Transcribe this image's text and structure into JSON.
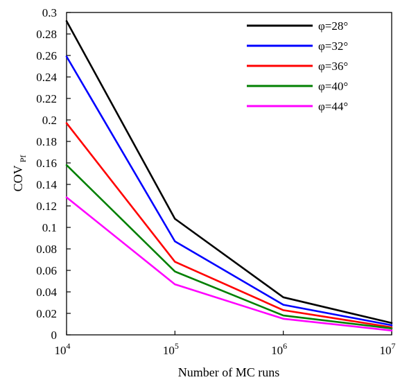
{
  "chart_data": {
    "type": "line",
    "xlabel": "Number of MC runs",
    "ylabel": {
      "main": "COV",
      "subscript": "Pf"
    },
    "x_scale": "log",
    "x": [
      10000,
      100000,
      1000000,
      10000000
    ],
    "x_ticks": [
      {
        "base": "10",
        "exp": "4"
      },
      {
        "base": "10",
        "exp": "5"
      },
      {
        "base": "10",
        "exp": "6"
      },
      {
        "base": "10",
        "exp": "7"
      }
    ],
    "ylim": [
      0,
      0.3
    ],
    "y_ticks": [
      "0",
      "0.02",
      "0.04",
      "0.06",
      "0.08",
      "0.1",
      "0.12",
      "0.14",
      "0.16",
      "0.18",
      "0.2",
      "0.22",
      "0.24",
      "0.26",
      "0.28",
      "0.3"
    ],
    "grid": false,
    "legend_position": "top-right",
    "series": [
      {
        "name": "φ=28°",
        "color": "#000000",
        "values": [
          0.292,
          0.108,
          0.035,
          0.011
        ]
      },
      {
        "name": "φ=32°",
        "color": "#0000ff",
        "values": [
          0.259,
          0.087,
          0.028,
          0.009
        ]
      },
      {
        "name": "φ=36°",
        "color": "#ff0000",
        "values": [
          0.197,
          0.068,
          0.023,
          0.007
        ]
      },
      {
        "name": "φ=40°",
        "color": "#008000",
        "values": [
          0.158,
          0.059,
          0.018,
          0.006
        ]
      },
      {
        "name": "φ=44°",
        "color": "#ff00ff",
        "values": [
          0.128,
          0.047,
          0.015,
          0.004
        ]
      }
    ]
  }
}
